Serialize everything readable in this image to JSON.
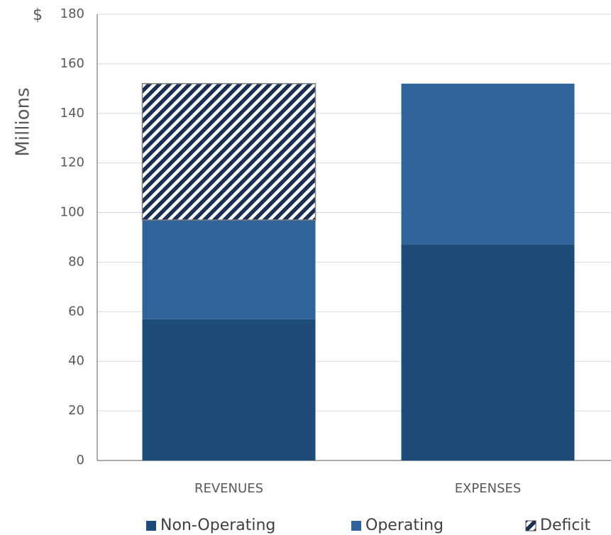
{
  "chart_data": {
    "type": "stacked_bar",
    "y_label": "Millions",
    "currency_symbol": "$",
    "categories": [
      "REVENUES",
      "EXPENSES"
    ],
    "series": [
      {
        "name": "Non-Operating",
        "color": "#1f4b78",
        "values": [
          57,
          87
        ]
      },
      {
        "name": "Operating",
        "color": "#30639a",
        "values": [
          40,
          65
        ]
      },
      {
        "name": "Deficit",
        "color": "#1a2f52",
        "pattern": "hatch",
        "values": [
          55,
          null
        ]
      }
    ],
    "ylim": [
      0,
      180
    ],
    "yticks": [
      0,
      20,
      40,
      60,
      80,
      100,
      120,
      140,
      160,
      180
    ],
    "grid": true,
    "legend": "bottom"
  }
}
